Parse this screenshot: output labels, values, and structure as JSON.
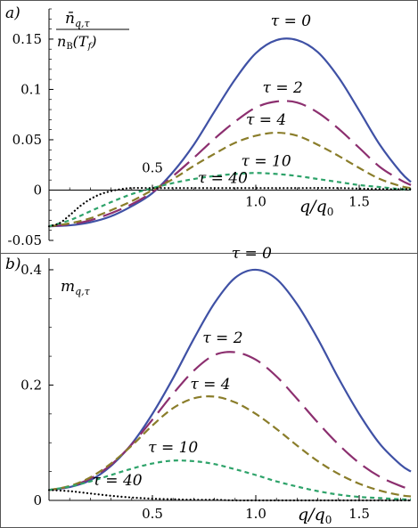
{
  "colors": {
    "tau0": "#3f51a5",
    "tau2": "#8c2f6f",
    "tau4": "#8a7d2a",
    "tau10": "#2ea36a",
    "tau40": "#000000"
  },
  "chart_data": [
    {
      "type": "line",
      "panel_label": "a)",
      "ylabel": "n̄_{q,τ} / n_B(T_f)",
      "ylabel_num": "n̄",
      "ylabel_num_sub": "q,τ",
      "ylabel_den": "n",
      "ylabel_den_sub": "B",
      "ylabel_den_arg": "(T",
      "ylabel_den_arg_sub": "f",
      "ylabel_den_close": ")",
      "xlabel": "q/q0",
      "xlabel_q": "q/q",
      "xlabel_sub": "0",
      "xlim": [
        0,
        1.75
      ],
      "ylim": [
        -0.05,
        0.18
      ],
      "x_ticks": [
        "0.5",
        "1.0",
        "1.5"
      ],
      "y_ticks": [
        "0.15",
        "0.1",
        "0.05",
        "0",
        "-0.05"
      ],
      "series": [
        {
          "name": "τ = 0",
          "style": "solid",
          "x": [
            0,
            0.1,
            0.2,
            0.3,
            0.4,
            0.5,
            0.6,
            0.7,
            0.8,
            0.9,
            1.0,
            1.1,
            1.2,
            1.3,
            1.4,
            1.5,
            1.6,
            1.7,
            1.75
          ],
          "y": [
            -0.036,
            -0.035,
            -0.032,
            -0.026,
            -0.016,
            -0.003,
            0.018,
            0.045,
            0.078,
            0.11,
            0.136,
            0.149,
            0.149,
            0.137,
            0.112,
            0.079,
            0.045,
            0.018,
            0.008
          ]
        },
        {
          "name": "τ = 2",
          "style": "longdash",
          "x": [
            0,
            0.1,
            0.2,
            0.3,
            0.4,
            0.5,
            0.6,
            0.7,
            0.8,
            0.9,
            1.0,
            1.1,
            1.2,
            1.3,
            1.4,
            1.5,
            1.6,
            1.7,
            1.75
          ],
          "y": [
            -0.036,
            -0.034,
            -0.03,
            -0.023,
            -0.014,
            -0.002,
            0.014,
            0.032,
            0.051,
            0.068,
            0.082,
            0.088,
            0.087,
            0.077,
            0.061,
            0.042,
            0.023,
            0.01,
            0.005
          ]
        },
        {
          "name": "τ = 4",
          "style": "dash",
          "x": [
            0,
            0.1,
            0.2,
            0.3,
            0.4,
            0.5,
            0.6,
            0.7,
            0.8,
            0.9,
            1.0,
            1.1,
            1.2,
            1.3,
            1.4,
            1.5,
            1.6,
            1.7,
            1.75
          ],
          "y": [
            -0.036,
            -0.033,
            -0.028,
            -0.02,
            -0.011,
            0.0,
            0.011,
            0.024,
            0.036,
            0.047,
            0.054,
            0.057,
            0.054,
            0.045,
            0.034,
            0.022,
            0.011,
            0.004,
            0.002
          ]
        },
        {
          "name": "τ = 10",
          "style": "shortdash",
          "x": [
            0,
            0.1,
            0.2,
            0.3,
            0.4,
            0.5,
            0.6,
            0.7,
            0.8,
            0.9,
            1.0,
            1.1,
            1.2,
            1.3,
            1.4,
            1.5,
            1.6,
            1.7,
            1.75
          ],
          "y": [
            -0.036,
            -0.03,
            -0.021,
            -0.012,
            -0.004,
            0.002,
            0.007,
            0.011,
            0.014,
            0.016,
            0.017,
            0.016,
            0.014,
            0.011,
            0.008,
            0.005,
            0.003,
            0.001,
            0.001
          ]
        },
        {
          "name": "τ = 40",
          "style": "dotted",
          "x": [
            0,
            0.05,
            0.1,
            0.15,
            0.2,
            0.25,
            0.3,
            0.35,
            0.4,
            0.5,
            0.6,
            0.8,
            1.0,
            1.2,
            1.4,
            1.6,
            1.75
          ],
          "y": [
            -0.036,
            -0.033,
            -0.025,
            -0.016,
            -0.009,
            -0.004,
            -0.001,
            0.001,
            0.002,
            0.002,
            0.002,
            0.002,
            0.002,
            0.002,
            0.002,
            0.001,
            0.001
          ]
        }
      ],
      "annotations": [
        {
          "text": "τ = 0",
          "x": 1.17,
          "y": 0.163
        },
        {
          "text": "τ = 2",
          "x": 1.13,
          "y": 0.097
        },
        {
          "text": "τ = 4",
          "x": 1.05,
          "y": 0.065
        },
        {
          "text": "τ = 10",
          "x": 1.05,
          "y": 0.024
        },
        {
          "text": "τ = 40",
          "x": 0.84,
          "y": 0.007
        }
      ]
    },
    {
      "type": "line",
      "panel_label": "b)",
      "ylabel": "m_{q,τ}",
      "ylabel_main": "m",
      "ylabel_sub": "q,τ",
      "xlabel": "q/q0",
      "xlabel_q": "q/q",
      "xlabel_sub": "0",
      "xlim": [
        0,
        1.75
      ],
      "ylim": [
        0,
        0.42
      ],
      "x_ticks": [
        "0.5",
        "1.0",
        "1.5"
      ],
      "y_ticks": [
        "0.4",
        "0.2",
        "0"
      ],
      "series": [
        {
          "name": "τ = 0",
          "style": "solid",
          "x": [
            0,
            0.1,
            0.2,
            0.3,
            0.4,
            0.5,
            0.6,
            0.7,
            0.8,
            0.9,
            1.0,
            1.1,
            1.2,
            1.3,
            1.4,
            1.5,
            1.6,
            1.7,
            1.75
          ],
          "y": [
            0.018,
            0.023,
            0.035,
            0.06,
            0.098,
            0.15,
            0.212,
            0.28,
            0.342,
            0.386,
            0.4,
            0.384,
            0.34,
            0.28,
            0.212,
            0.15,
            0.098,
            0.062,
            0.05
          ]
        },
        {
          "name": "τ = 2",
          "style": "longdash",
          "x": [
            0,
            0.1,
            0.2,
            0.3,
            0.4,
            0.5,
            0.6,
            0.7,
            0.8,
            0.9,
            1.0,
            1.1,
            1.2,
            1.3,
            1.4,
            1.5,
            1.6,
            1.7,
            1.75
          ],
          "y": [
            0.018,
            0.024,
            0.038,
            0.062,
            0.097,
            0.14,
            0.185,
            0.225,
            0.252,
            0.257,
            0.244,
            0.215,
            0.176,
            0.135,
            0.097,
            0.065,
            0.041,
            0.025,
            0.019
          ]
        },
        {
          "name": "τ = 4",
          "style": "dash",
          "x": [
            0,
            0.1,
            0.2,
            0.3,
            0.4,
            0.5,
            0.6,
            0.7,
            0.8,
            0.9,
            1.0,
            1.1,
            1.2,
            1.3,
            1.4,
            1.5,
            1.6,
            1.7,
            1.75
          ],
          "y": [
            0.018,
            0.025,
            0.04,
            0.064,
            0.095,
            0.13,
            0.16,
            0.177,
            0.18,
            0.17,
            0.15,
            0.124,
            0.095,
            0.068,
            0.046,
            0.029,
            0.017,
            0.009,
            0.007
          ]
        },
        {
          "name": "τ = 10",
          "style": "shortdash",
          "x": [
            0,
            0.1,
            0.2,
            0.3,
            0.4,
            0.5,
            0.6,
            0.7,
            0.8,
            0.9,
            1.0,
            1.1,
            1.2,
            1.3,
            1.4,
            1.5,
            1.6,
            1.7,
            1.75
          ],
          "y": [
            0.018,
            0.024,
            0.033,
            0.044,
            0.055,
            0.064,
            0.069,
            0.068,
            0.063,
            0.054,
            0.044,
            0.033,
            0.024,
            0.016,
            0.01,
            0.006,
            0.004,
            0.002,
            0.002
          ]
        },
        {
          "name": "τ = 40",
          "style": "dotted",
          "x": [
            0,
            0.1,
            0.2,
            0.3,
            0.4,
            0.5,
            0.6,
            0.7,
            0.8,
            0.9,
            1.0,
            1.2,
            1.4,
            1.6,
            1.75
          ],
          "y": [
            0.018,
            0.016,
            0.012,
            0.008,
            0.005,
            0.003,
            0.002,
            0.001,
            0.001,
            0.0,
            0.0,
            0.0,
            0.0,
            0.0,
            0.0
          ]
        }
      ],
      "annotations": [
        {
          "text": "τ = 0",
          "x": 0.98,
          "y": 0.42
        },
        {
          "text": "τ = 2",
          "x": 0.84,
          "y": 0.273
        },
        {
          "text": "τ = 4",
          "x": 0.78,
          "y": 0.193
        },
        {
          "text": "τ = 10",
          "x": 0.6,
          "y": 0.083
        },
        {
          "text": "τ = 40",
          "x": 0.33,
          "y": 0.026
        }
      ]
    }
  ]
}
